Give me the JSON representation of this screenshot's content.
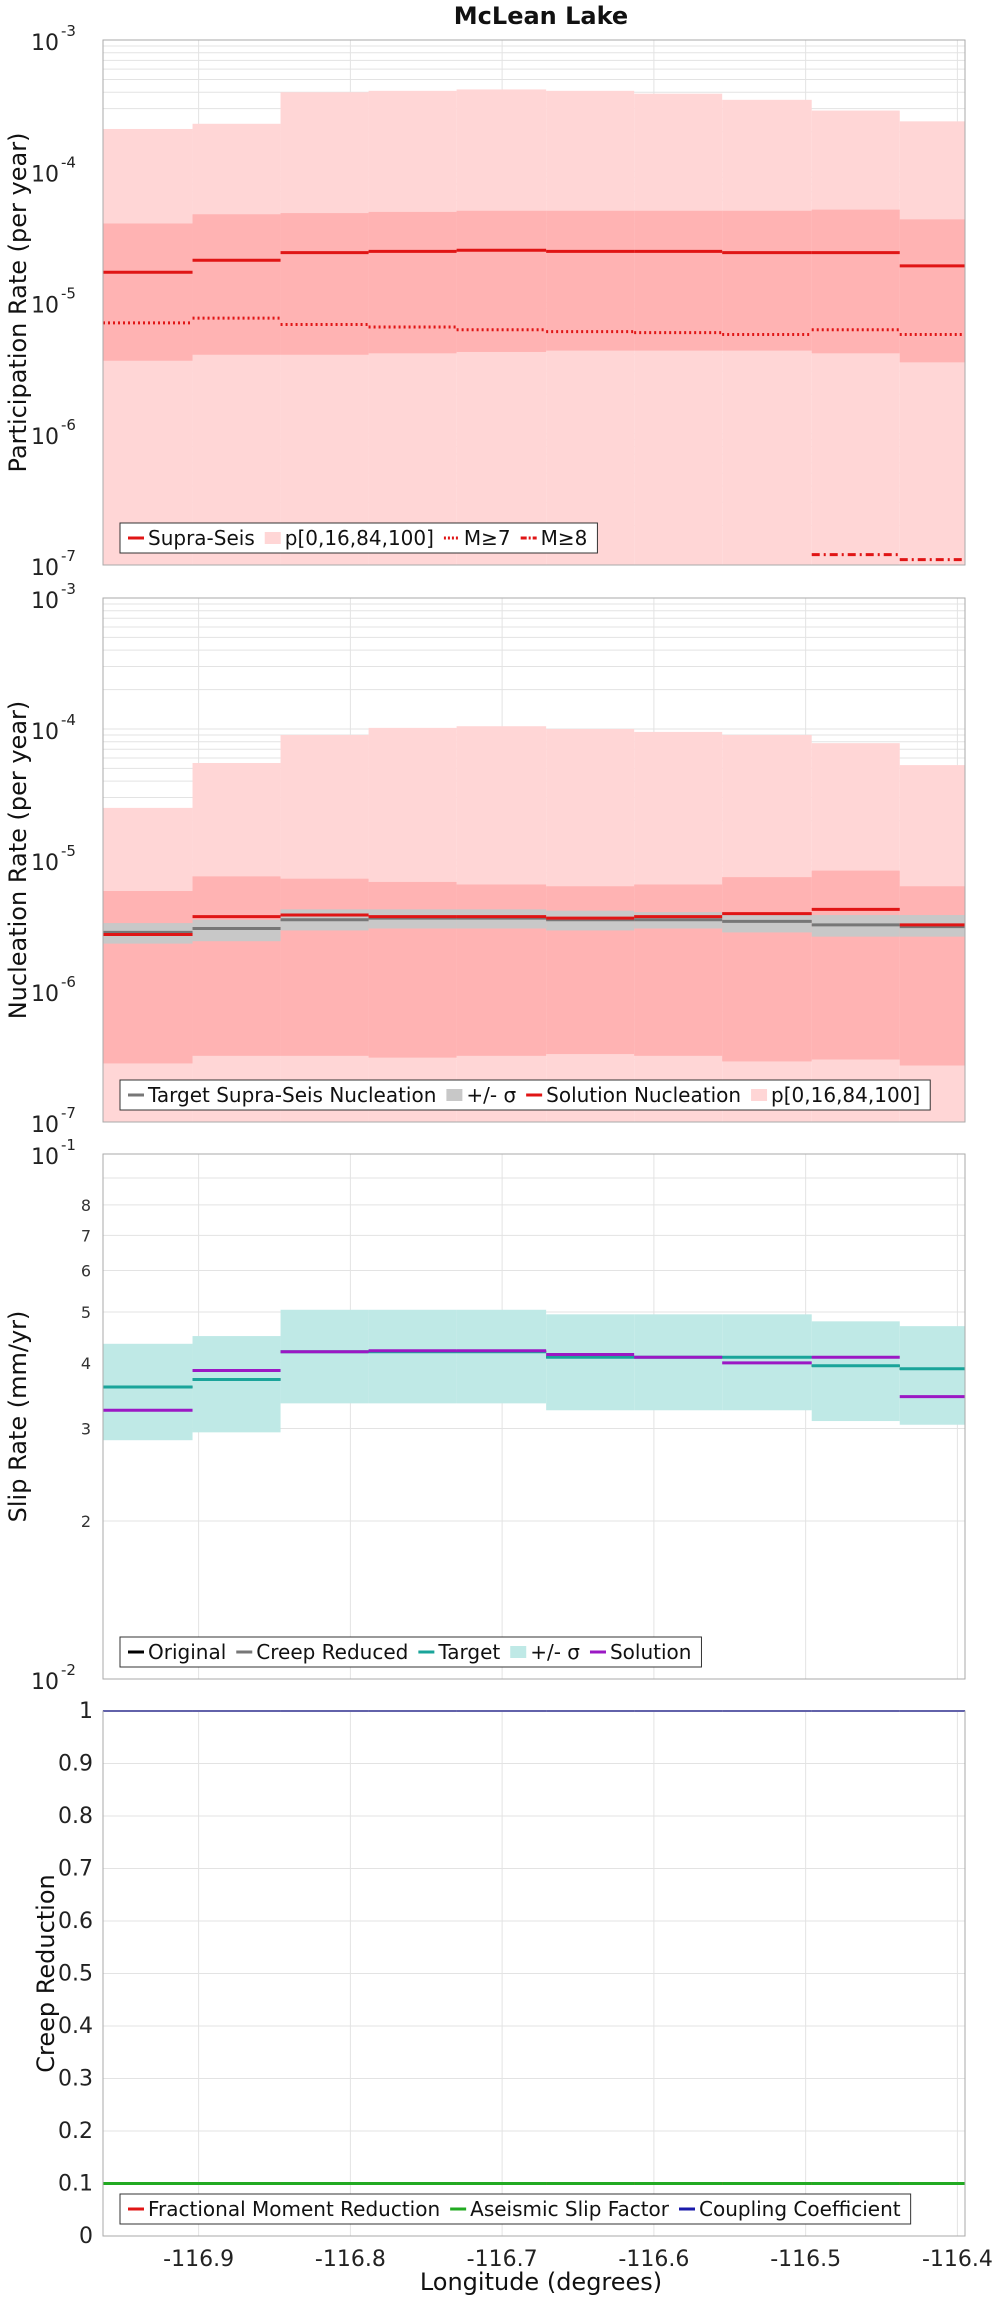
{
  "title": "McLean Lake",
  "xlabel": "Longitude (degrees)",
  "x_ticks": [
    "-116.9",
    "-116.8",
    "-116.7",
    "-116.6",
    "-116.5",
    "-116.4"
  ],
  "colors": {
    "supra": "#e01515",
    "band_outer": "#ffd6d6",
    "band_inner": "#ffb3b3",
    "target_teal": "#1aa49a",
    "sigma_fill": "#bfe9e6",
    "gray": "#777777",
    "gray_band": "#c8c8c8",
    "purple": "#9b18c4",
    "green": "#22aa22",
    "blue": "#1a1aaa",
    "black": "#000000"
  },
  "chart_data": [
    {
      "type": "line",
      "ylabel": "Participation Rate (per year)",
      "yscale": "log",
      "ylim": [
        "1e-7",
        "1e-3"
      ],
      "y_tick_base": "10",
      "y_tick_exponents": [
        "-7",
        "-6",
        "-5",
        "-4",
        "-3"
      ],
      "x_edges": [
        -116.963,
        -116.904,
        -116.846,
        -116.788,
        -116.73,
        -116.671,
        -116.613,
        -116.555,
        -116.496,
        -116.438,
        -116.395
      ],
      "series": [
        {
          "key": "outer",
          "name": "p[0,16,84,100]",
          "style": "band",
          "color": "#ffd6d6",
          "low": [
            1e-07,
            1e-07,
            1e-07,
            1e-07,
            1e-07,
            1e-07,
            1e-07,
            1e-07,
            1e-07,
            1e-07
          ],
          "high": [
            0.00021,
            0.00023,
            0.0004,
            0.00041,
            0.00042,
            0.00041,
            0.00039,
            0.00035,
            0.00029,
            0.00024
          ]
        },
        {
          "key": "inner",
          "name": "",
          "style": "band",
          "color": "#ffb3b3",
          "low": [
            3.6e-06,
            4e-06,
            4e-06,
            4.1e-06,
            4.2e-06,
            4.3e-06,
            4.3e-06,
            4.3e-06,
            4.1e-06,
            3.5e-06
          ],
          "high": [
            4e-05,
            4.7e-05,
            4.8e-05,
            4.9e-05,
            5e-05,
            5e-05,
            5e-05,
            5e-05,
            5.1e-05,
            4.3e-05
          ]
        },
        {
          "key": "supra",
          "name": "Supra-Seis",
          "style": "solid",
          "color": "#e01515",
          "values": [
            1.7e-05,
            2.1e-05,
            2.4e-05,
            2.45e-05,
            2.5e-05,
            2.45e-05,
            2.45e-05,
            2.4e-05,
            2.4e-05,
            1.9e-05
          ]
        },
        {
          "key": "m7",
          "name": "M≥7",
          "style": "dotted",
          "color": "#e01515",
          "values": [
            7e-06,
            7.6e-06,
            6.8e-06,
            6.5e-06,
            6.2e-06,
            6e-06,
            5.9e-06,
            5.7e-06,
            6.2e-06,
            5.7e-06
          ]
        },
        {
          "key": "m8",
          "name": "M≥8",
          "style": "dashdot",
          "color": "#e01515",
          "values": [
            null,
            null,
            null,
            null,
            null,
            null,
            null,
            null,
            1.2e-07,
            1.1e-07
          ]
        }
      ],
      "legend": [
        "supra",
        "outer",
        "m7",
        "m8"
      ],
      "legend_position": "bottom-left"
    },
    {
      "type": "line",
      "ylabel": "Nucleation Rate (per year)",
      "yscale": "log",
      "ylim": [
        "1e-7",
        "1e-3"
      ],
      "y_tick_base": "10",
      "y_tick_exponents": [
        "-7",
        "-6",
        "-5",
        "-4",
        "-3"
      ],
      "x_edges": [
        -116.963,
        -116.904,
        -116.846,
        -116.788,
        -116.73,
        -116.671,
        -116.613,
        -116.555,
        -116.496,
        -116.438,
        -116.395
      ],
      "series": [
        {
          "key": "outer",
          "name": "p[0,16,84,100]",
          "style": "band",
          "color": "#ffd6d6",
          "low": [
            1e-07,
            1e-07,
            1e-07,
            1e-07,
            1e-07,
            1e-07,
            1e-07,
            1e-07,
            1e-07,
            1e-07
          ],
          "high": [
            2.5e-05,
            5.5e-05,
            9e-05,
            0.000102,
            0.000105,
            0.0001,
            9.5e-05,
            9e-05,
            7.8e-05,
            5.3e-05
          ]
        },
        {
          "key": "inner",
          "name": "",
          "style": "band",
          "color": "#ffb3b3",
          "low": [
            2.8e-07,
            3.2e-07,
            3.2e-07,
            3.1e-07,
            3.2e-07,
            3.3e-07,
            3.2e-07,
            2.9e-07,
            3e-07,
            2.7e-07
          ],
          "high": [
            5.8e-06,
            7.5e-06,
            7.2e-06,
            6.8e-06,
            6.5e-06,
            6.3e-06,
            6.5e-06,
            7.4e-06,
            8.3e-06,
            6.3e-06
          ]
        },
        {
          "key": "sigma",
          "name": "+/- σ",
          "style": "band",
          "color": "#c8c8c8",
          "low": [
            2.3e-06,
            2.4e-06,
            2.9e-06,
            3e-06,
            3e-06,
            2.9e-06,
            3e-06,
            2.8e-06,
            2.6e-06,
            2.6e-06
          ],
          "high": [
            3.3e-06,
            3.5e-06,
            4.2e-06,
            4.2e-06,
            4.2e-06,
            4.1e-06,
            4e-06,
            3.9e-06,
            3.8e-06,
            3.8e-06
          ]
        },
        {
          "key": "target",
          "name": "Target Supra-Seis Nucleation",
          "style": "solid",
          "color": "#777777",
          "values": [
            2.8e-06,
            3e-06,
            3.5e-06,
            3.6e-06,
            3.6e-06,
            3.5e-06,
            3.5e-06,
            3.4e-06,
            3.2e-06,
            3.1e-06
          ]
        },
        {
          "key": "solution",
          "name": "Solution Nucleation",
          "style": "solid",
          "color": "#e01515",
          "values": [
            2.7e-06,
            3.7e-06,
            3.8e-06,
            3.7e-06,
            3.7e-06,
            3.6e-06,
            3.7e-06,
            3.9e-06,
            4.2e-06,
            3.2e-06
          ]
        }
      ],
      "legend": [
        "target",
        "sigma",
        "solution",
        "outer"
      ],
      "legend_position": "bottom-left"
    },
    {
      "type": "line",
      "ylabel": "Slip Rate (mm/yr)",
      "yscale": "log",
      "ylim": [
        "1",
        "10"
      ],
      "y_tick_base": "10",
      "y_tick_exponents": [
        "-2",
        "-1"
      ],
      "y_minor_ticks": [
        "2",
        "3",
        "4",
        "5",
        "6",
        "7",
        "8"
      ],
      "x_edges": [
        -116.963,
        -116.904,
        -116.846,
        -116.788,
        -116.73,
        -116.671,
        -116.613,
        -116.555,
        -116.496,
        -116.438,
        -116.395
      ],
      "series": [
        {
          "key": "sigma",
          "name": "+/- σ",
          "style": "band",
          "color": "#bfe9e6",
          "low": [
            2.85,
            2.95,
            3.35,
            3.35,
            3.35,
            3.25,
            3.25,
            3.25,
            3.1,
            3.05
          ],
          "high": [
            4.35,
            4.5,
            5.05,
            5.05,
            5.05,
            4.95,
            4.95,
            4.95,
            4.8,
            4.7
          ]
        },
        {
          "key": "original",
          "name": "Original",
          "style": "solid",
          "color": "#000000",
          "values": [
            3.6,
            3.72,
            4.2,
            4.2,
            4.2,
            4.1,
            4.1,
            4.1,
            3.95,
            3.9
          ]
        },
        {
          "key": "creep",
          "name": "Creep Reduced",
          "style": "solid",
          "color": "#777777",
          "values": [
            3.6,
            3.72,
            4.2,
            4.2,
            4.2,
            4.1,
            4.1,
            4.1,
            3.95,
            3.9
          ]
        },
        {
          "key": "target",
          "name": "Target",
          "style": "solid",
          "color": "#1aa49a",
          "values": [
            3.6,
            3.72,
            4.2,
            4.2,
            4.2,
            4.1,
            4.1,
            4.1,
            3.95,
            3.9
          ]
        },
        {
          "key": "solution",
          "name": "Solution",
          "style": "solid",
          "color": "#9b18c4",
          "values": [
            3.25,
            3.87,
            4.2,
            4.22,
            4.22,
            4.15,
            4.1,
            4.0,
            4.1,
            3.45
          ]
        }
      ],
      "legend": [
        "original",
        "creep",
        "target",
        "sigma",
        "solution"
      ],
      "legend_position": "bottom-left"
    },
    {
      "type": "line",
      "ylabel": "Creep Reduction",
      "yscale": "linear",
      "ylim": [
        0,
        1
      ],
      "y_ticks": [
        "0",
        "0.1",
        "0.2",
        "0.3",
        "0.4",
        "0.5",
        "0.6",
        "0.7",
        "0.8",
        "0.9",
        "1"
      ],
      "x_edges": [
        -116.963,
        -116.904,
        -116.846,
        -116.788,
        -116.73,
        -116.671,
        -116.613,
        -116.555,
        -116.496,
        -116.438,
        -116.395
      ],
      "series": [
        {
          "key": "fmr",
          "name": "Fractional Moment Reduction",
          "style": "solid",
          "color": "#e01515",
          "values": [
            0.1,
            0.1,
            0.1,
            0.1,
            0.1,
            0.1,
            0.1,
            0.1,
            0.1,
            0.1
          ]
        },
        {
          "key": "asf",
          "name": "Aseismic Slip Factor",
          "style": "solid",
          "color": "#22aa22",
          "values": [
            0.1,
            0.1,
            0.1,
            0.1,
            0.1,
            0.1,
            0.1,
            0.1,
            0.1,
            0.1
          ]
        },
        {
          "key": "cc",
          "name": "Coupling Coefficient",
          "style": "solid",
          "color": "#1a1aaa",
          "values": [
            1,
            1,
            1,
            1,
            1,
            1,
            1,
            1,
            1,
            1
          ]
        }
      ],
      "legend": [
        "fmr",
        "asf",
        "cc"
      ],
      "legend_position": "bottom-left"
    }
  ]
}
